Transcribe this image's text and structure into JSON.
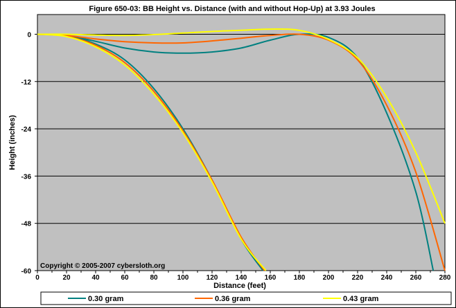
{
  "chart_data": {
    "type": "line",
    "title": "Figure 650-03:  BB Height vs. Distance (with and without Hop-Up) at 3.93 Joules",
    "xlabel": "Distance (feet)",
    "ylabel": "Height (inches)",
    "xlim": [
      0,
      280
    ],
    "ylim": [
      -60,
      5
    ],
    "x_ticks": [
      "0",
      "20",
      "40",
      "60",
      "80",
      "100",
      "120",
      "140",
      "160",
      "180",
      "200",
      "220",
      "240",
      "260",
      "280"
    ],
    "y_ticks": [
      "0",
      "-12",
      "-24",
      "-36",
      "-48",
      "-60"
    ],
    "grid": "horizontal",
    "legend": "bottom",
    "annotation": "Copyright © 2005-2007 cybersloth.org",
    "series": [
      {
        "name": "0.30 gram",
        "color": "#008080",
        "hop_up": false,
        "x": [
          0,
          20,
          40,
          60,
          80,
          100,
          120,
          140,
          155
        ],
        "y": [
          0,
          -0.3,
          -2.5,
          -6.5,
          -13.8,
          -24,
          -37,
          -52,
          -60
        ]
      },
      {
        "name": "0.30 gram",
        "color": "#008080",
        "hop_up": true,
        "x": [
          0,
          20,
          40,
          60,
          80,
          100,
          120,
          140,
          160,
          180,
          200,
          220,
          240,
          260,
          272
        ],
        "y": [
          0,
          -0.3,
          -1.8,
          -3.5,
          -4.5,
          -4.8,
          -4.5,
          -3.5,
          -1.5,
          0,
          -0.8,
          -6,
          -20,
          -40,
          -60
        ]
      },
      {
        "name": "0.36 gram",
        "color": "#ff6600",
        "hop_up": false,
        "x": [
          0,
          20,
          40,
          60,
          80,
          100,
          120,
          140,
          156
        ],
        "y": [
          0,
          -0.5,
          -2.8,
          -7.2,
          -14.5,
          -24.5,
          -37,
          -51.5,
          -60
        ]
      },
      {
        "name": "0.36 gram",
        "color": "#ff6600",
        "hop_up": true,
        "x": [
          0,
          20,
          40,
          60,
          80,
          100,
          120,
          140,
          160,
          180,
          200,
          220,
          240,
          260,
          280
        ],
        "y": [
          0,
          -0.3,
          -1.2,
          -1.9,
          -2.2,
          -2.2,
          -1.7,
          -1.0,
          -0.3,
          0,
          -1.5,
          -6.5,
          -18,
          -35,
          -60
        ]
      },
      {
        "name": "0.43 gram",
        "color": "#ffff00",
        "hop_up": false,
        "x": [
          0,
          20,
          40,
          60,
          80,
          100,
          120,
          140,
          157
        ],
        "y": [
          0,
          -0.6,
          -3.2,
          -7.8,
          -15.2,
          -25,
          -37.5,
          -52,
          -60
        ]
      },
      {
        "name": "0.43 gram",
        "color": "#ffff00",
        "hop_up": true,
        "x": [
          0,
          20,
          40,
          60,
          80,
          100,
          120,
          140,
          160,
          180,
          200,
          220,
          240,
          260,
          280
        ],
        "y": [
          0,
          0,
          -0.2,
          -0.3,
          -0.1,
          0.3,
          0.7,
          1.0,
          1.3,
          1.0,
          -1.3,
          -6,
          -16,
          -30,
          -48
        ]
      }
    ]
  }
}
